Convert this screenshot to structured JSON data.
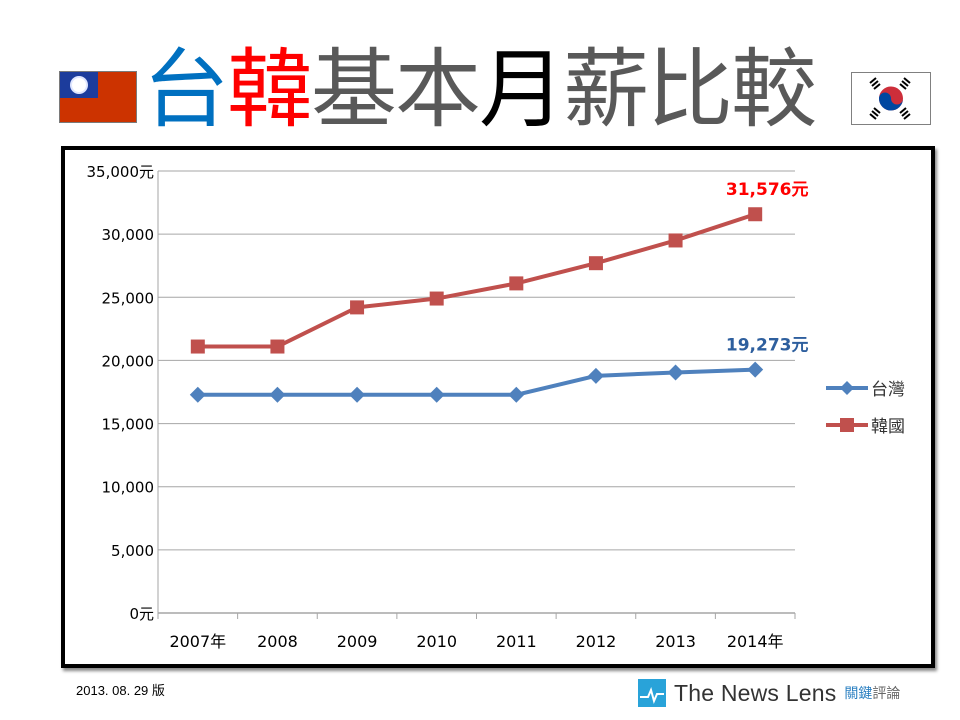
{
  "header": {
    "title_parts": [
      "台",
      "韓",
      "基本",
      "月",
      "薪比較"
    ],
    "title_colors": [
      "#0070c0",
      "#ff0000",
      "#595959",
      "#000000",
      "#595959"
    ],
    "flag_left": "taiwan-flag",
    "flag_right": "south-korea-flag"
  },
  "footer": {
    "date": "2013. 08. 29 版",
    "brand": "The News Lens",
    "brand_cn_1": "關鍵",
    "brand_cn_2": "評論"
  },
  "chart_data": {
    "type": "line",
    "title": "台韓基本月薪比較",
    "xlabel": "",
    "ylabel": "",
    "categories": [
      "2007年",
      "2008",
      "2009",
      "2010",
      "2011",
      "2012",
      "2013",
      "2014年"
    ],
    "x": [
      2007,
      2008,
      2009,
      2010,
      2011,
      2012,
      2013,
      2014
    ],
    "ylim": [
      0,
      35000
    ],
    "yticks": [
      0,
      5000,
      10000,
      15000,
      20000,
      25000,
      30000,
      35000
    ],
    "ytick_labels": [
      "0元",
      "5,000",
      "10,000",
      "15,000",
      "20,000",
      "25,000",
      "30,000",
      "35,000元"
    ],
    "grid": true,
    "legend_position": "right",
    "series": [
      {
        "name": "台灣",
        "color": "#4f81bd",
        "marker": "diamond",
        "values": [
          17280,
          17280,
          17280,
          17280,
          17280,
          18780,
          19047,
          19273
        ]
      },
      {
        "name": "韓國",
        "color": "#c0504d",
        "marker": "square",
        "values": [
          21100,
          21100,
          24200,
          24900,
          26100,
          27700,
          29500,
          31576
        ]
      }
    ],
    "annotations": [
      {
        "series": "韓國",
        "x": 2014,
        "text": "31,576元",
        "color": "#ff0000"
      },
      {
        "series": "台灣",
        "x": 2014,
        "text": "19,273元",
        "color": "#2e5f9e"
      }
    ]
  }
}
